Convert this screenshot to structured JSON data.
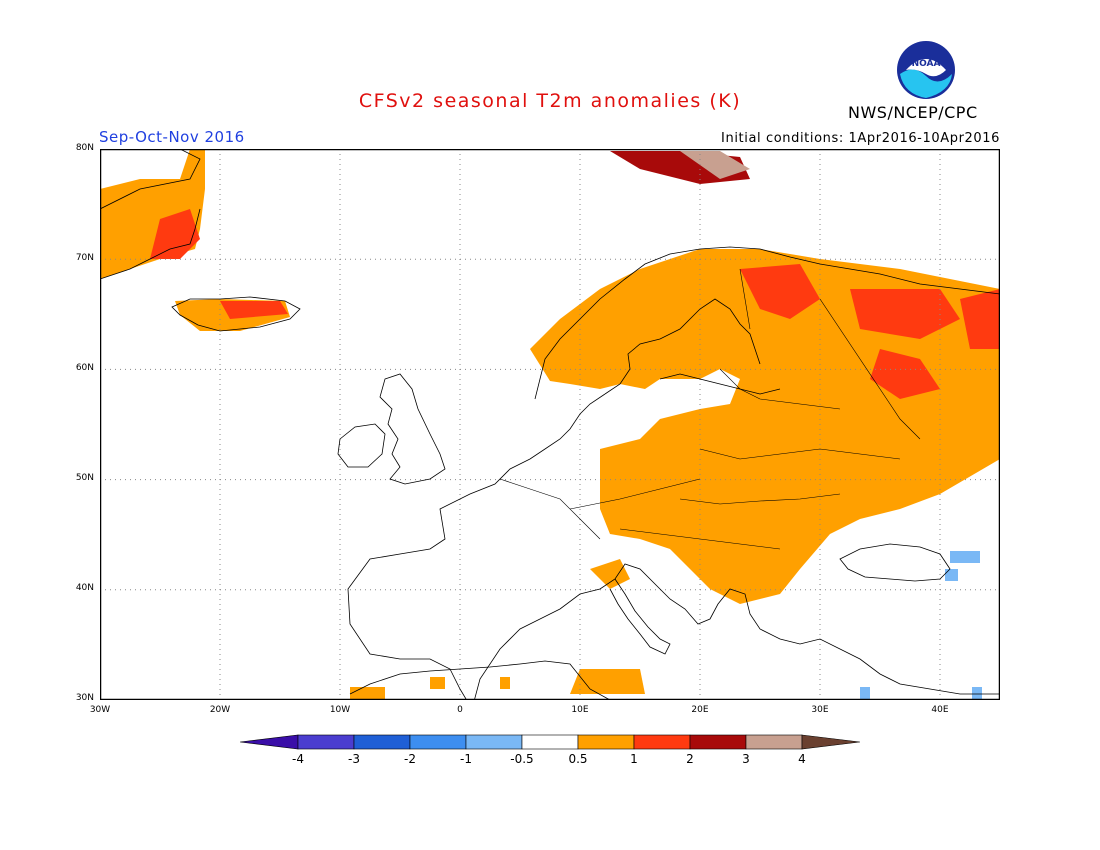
{
  "header": {
    "title": "CFSv2 seasonal T2m anomalies (K)",
    "season": "Sep-Oct-Nov 2016",
    "initial_conditions": "Initial conditions: 1Apr2016-10Apr2016",
    "agency": "NWS/NCEP/CPC",
    "logo_icon": "noaa-logo-icon",
    "logo_text": "NOAA"
  },
  "map": {
    "lon_range": [
      -30,
      45
    ],
    "lat_range": [
      30,
      80
    ],
    "lat_labels": [
      "80N",
      "70N",
      "60N",
      "50N",
      "40N",
      "30N"
    ],
    "lon_labels": [
      "30W",
      "20W",
      "10W",
      "0",
      "10E",
      "20E",
      "30E",
      "40E"
    ],
    "grid": true
  },
  "colorbar": {
    "labels": [
      "-4",
      "-3",
      "-2",
      "-1",
      "-0.5",
      "0.5",
      "1",
      "2",
      "3",
      "4"
    ],
    "colors": [
      "#3a0ea8",
      "#4b3dcf",
      "#1f5fd6",
      "#3d8ef0",
      "#7ab8f5",
      "#ffffff",
      "#ffa000",
      "#ff3a10",
      "#a80a0a",
      "#c8a090",
      "#6a4030"
    ]
  }
}
